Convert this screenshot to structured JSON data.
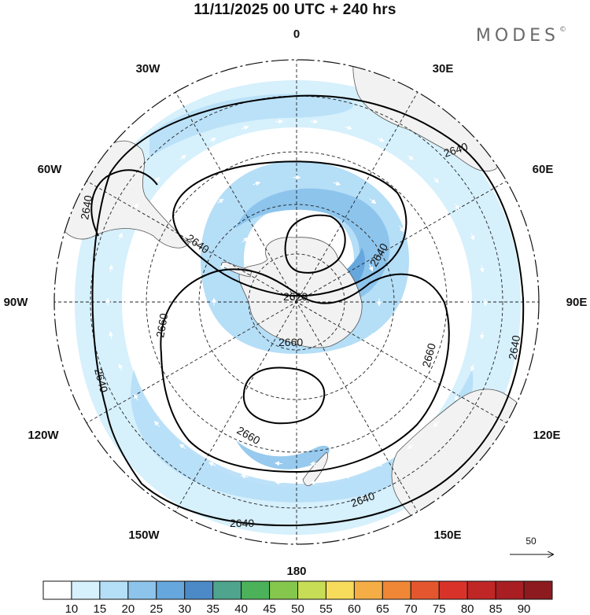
{
  "header": {
    "title": "11/11/2025  00 UTC  + 240 hrs",
    "brand": "MODES",
    "brand_mark": "©"
  },
  "map": {
    "projection": "south-polar-stereographic",
    "longitude_labels": [
      "0",
      "30E",
      "60E",
      "90E",
      "120E",
      "150E",
      "180",
      "150W",
      "120W",
      "90W",
      "60W",
      "30W"
    ],
    "contour_labels": [
      "2640",
      "2640",
      "2640",
      "2640",
      "2640",
      "2640",
      "2640",
      "2640",
      "2620",
      "2660",
      "2660",
      "2660",
      "2660"
    ],
    "wind_scale_label": "50"
  },
  "colorbar": {
    "labels": [
      "10",
      "15",
      "20",
      "25",
      "30",
      "35",
      "40",
      "45",
      "50",
      "55",
      "60",
      "65",
      "70",
      "75",
      "80",
      "85",
      "90"
    ],
    "colors": [
      "#ffffff",
      "#d6f0fc",
      "#b5def7",
      "#8cc4ec",
      "#66a7dd",
      "#4b8ac7",
      "#4ea48c",
      "#4bb25a",
      "#85c64c",
      "#c6dd55",
      "#f6dc5a",
      "#f4ae45",
      "#ef8736",
      "#e4562e",
      "#d93329",
      "#c02626",
      "#a81e22",
      "#8d1a1e"
    ]
  },
  "colors": {
    "land": "#f2f2f2",
    "coast": "#555555",
    "ocean": "#ffffff",
    "contour": "#000000"
  }
}
